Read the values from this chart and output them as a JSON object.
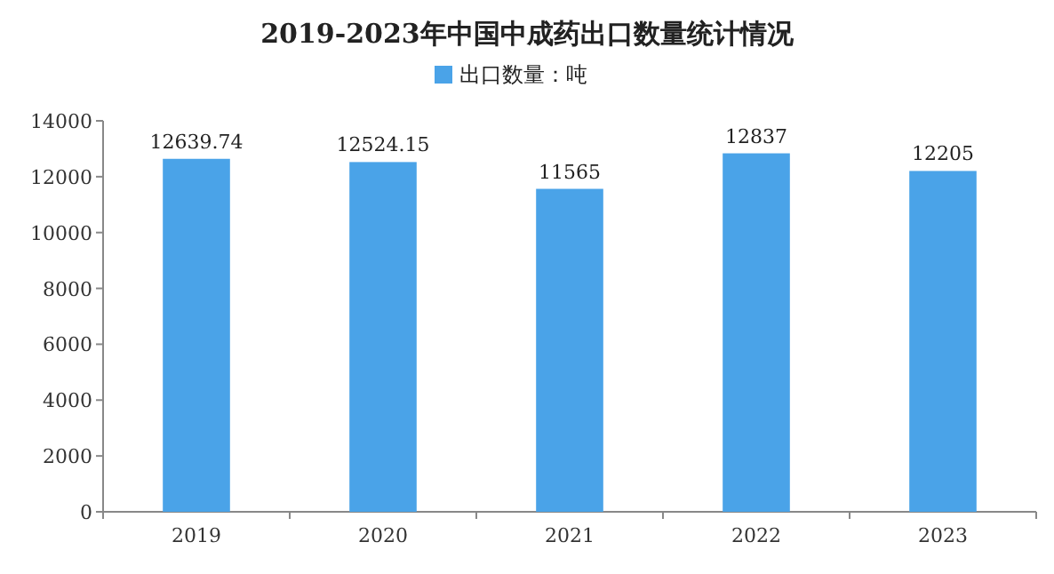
{
  "chart_data": {
    "type": "bar",
    "title": "2019-2023年中国中成药出口数量统计情况",
    "categories": [
      "2019",
      "2020",
      "2021",
      "2022",
      "2023"
    ],
    "series": [
      {
        "name": "出口数量：吨",
        "color": "#4aa3e8",
        "values": [
          12639.74,
          12524.15,
          11565,
          12837,
          12205
        ]
      }
    ],
    "ylim": [
      0,
      14000
    ],
    "yticks": [
      0,
      2000,
      4000,
      6000,
      8000,
      10000,
      12000,
      14000
    ],
    "data_labels": true,
    "legend": "top",
    "grid": false
  }
}
